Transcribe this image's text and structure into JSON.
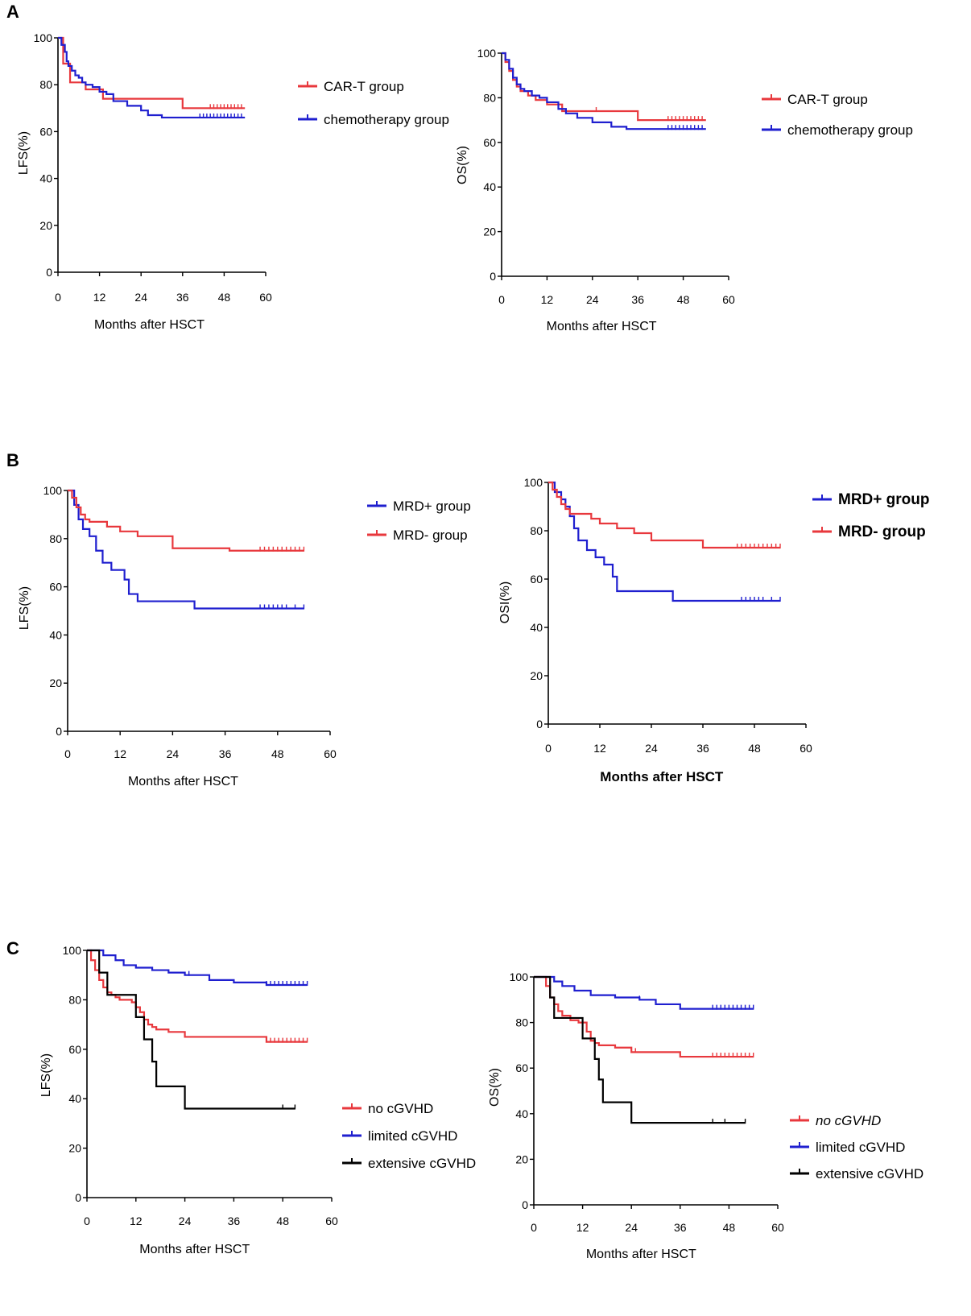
{
  "chart_data": [
    {
      "id": "A1",
      "panel": "A",
      "type": "line",
      "ylabel": "LFS(%)",
      "xlabel": "Months after HSCT",
      "xlim": [
        0,
        60
      ],
      "ylim": [
        0,
        100
      ],
      "xticks": [
        "0",
        "12",
        "24",
        "36",
        "48",
        "60"
      ],
      "yticks": [
        "0",
        "20",
        "40",
        "60",
        "80",
        "100"
      ],
      "series": [
        {
          "name": "CAR-T group",
          "color": "#e8383d",
          "x": [
            0,
            1.5,
            3.5,
            8,
            13,
            36,
            54
          ],
          "y": [
            100,
            89,
            81,
            78,
            74,
            70,
            70
          ],
          "censor_x": [
            44,
            45,
            46,
            47,
            48,
            49,
            50,
            51,
            52,
            53
          ]
        },
        {
          "name": "chemotherapy group",
          "color": "#1f1fcf",
          "x": [
            0,
            1,
            2,
            2.5,
            3,
            4,
            5,
            6,
            7,
            8,
            10,
            12,
            14,
            16,
            20,
            24,
            26,
            30,
            54
          ],
          "y": [
            100,
            97,
            94,
            90,
            88,
            86,
            84,
            83,
            81,
            80,
            79,
            77,
            76,
            73,
            71,
            69,
            67,
            66,
            66
          ],
          "censor_x": [
            41,
            42,
            43,
            44,
            45,
            46,
            47,
            48,
            49,
            50,
            51,
            52,
            53
          ]
        }
      ]
    },
    {
      "id": "A2",
      "panel": "A",
      "type": "line",
      "ylabel": "OS(%)",
      "xlabel": "Months after HSCT",
      "xlim": [
        0,
        60
      ],
      "ylim": [
        0,
        100
      ],
      "xticks": [
        "0",
        "12",
        "24",
        "36",
        "48",
        "60"
      ],
      "yticks": [
        "0",
        "20",
        "40",
        "60",
        "80",
        "100"
      ],
      "series": [
        {
          "name": "CAR-T group",
          "color": "#e8383d",
          "x": [
            0,
            1,
            2,
            3,
            4,
            5,
            7,
            9,
            12,
            16,
            36,
            54
          ],
          "y": [
            100,
            96,
            92,
            88,
            85,
            83,
            81,
            79,
            77,
            74,
            70,
            70
          ],
          "censor_x": [
            25,
            44,
            45,
            46,
            47,
            48,
            49,
            50,
            51,
            52,
            53
          ]
        },
        {
          "name": "chemotherapy group",
          "color": "#1f1fcf",
          "x": [
            0,
            1,
            2,
            3,
            4,
            5,
            6,
            8,
            10,
            12,
            15,
            17,
            20,
            24,
            29,
            33,
            54
          ],
          "y": [
            100,
            97,
            93,
            89,
            86,
            84,
            83,
            81,
            80,
            78,
            75,
            73,
            71,
            69,
            67,
            66,
            66
          ],
          "censor_x": [
            44,
            45,
            46,
            47,
            48,
            49,
            50,
            51,
            52,
            53
          ]
        }
      ]
    },
    {
      "id": "B1",
      "panel": "B",
      "type": "line",
      "ylabel": "LFS(%)",
      "xlabel": "Months after HSCT",
      "xlim": [
        0,
        60
      ],
      "ylim": [
        0,
        100
      ],
      "xticks": [
        "0",
        "12",
        "24",
        "36",
        "48",
        "60"
      ],
      "yticks": [
        "0",
        "20",
        "40",
        "60",
        "80",
        "100"
      ],
      "series": [
        {
          "name": "MRD+ group",
          "color": "#1f1fcf",
          "x": [
            0,
            1.5,
            2.5,
            3.5,
            5,
            6.5,
            8,
            10,
            13,
            14,
            16,
            29,
            54
          ],
          "y": [
            100,
            94,
            88,
            84,
            81,
            75,
            70,
            67,
            63,
            57,
            54,
            51,
            51
          ],
          "censor_x": [
            44,
            45,
            46,
            47,
            48,
            49,
            50,
            52,
            54
          ]
        },
        {
          "name": "MRD- group",
          "color": "#e8383d",
          "x": [
            0,
            1,
            2,
            3,
            4,
            5,
            9,
            12,
            16,
            24,
            37,
            54
          ],
          "y": [
            100,
            97,
            93,
            90,
            88,
            87,
            85,
            83,
            81,
            76,
            75,
            75
          ],
          "censor_x": [
            44,
            45,
            46,
            47,
            48,
            49,
            50,
            51,
            52,
            53,
            54
          ]
        }
      ]
    },
    {
      "id": "B2",
      "panel": "B",
      "type": "line",
      "ylabel": "OSI(%)",
      "xlabel": "Months after HSCT",
      "xlim": [
        0,
        60
      ],
      "ylim": [
        0,
        100
      ],
      "xticks": [
        "0",
        "12",
        "24",
        "36",
        "48",
        "60"
      ],
      "yticks": [
        "0",
        "20",
        "40",
        "60",
        "80",
        "100"
      ],
      "series": [
        {
          "name": "MRD+ group",
          "color": "#1f1fcf",
          "x": [
            0,
            1.5,
            3,
            4,
            5,
            6,
            7,
            9,
            11,
            13,
            15,
            16,
            29,
            54
          ],
          "y": [
            100,
            96,
            93,
            90,
            86,
            81,
            76,
            72,
            69,
            66,
            61,
            55,
            51,
            51
          ],
          "censor_x": [
            45,
            46,
            47,
            48,
            49,
            50,
            52,
            54
          ]
        },
        {
          "name": "MRD- group",
          "color": "#e8383d",
          "x": [
            0,
            1,
            2,
            3,
            4,
            5,
            10,
            12,
            16,
            20,
            24,
            36,
            54
          ],
          "y": [
            100,
            97,
            94,
            91,
            89,
            87,
            85,
            83,
            81,
            79,
            76,
            73,
            73
          ],
          "censor_x": [
            24,
            44,
            45,
            46,
            47,
            48,
            49,
            50,
            51,
            52,
            53,
            54
          ]
        }
      ]
    },
    {
      "id": "C1",
      "panel": "C",
      "type": "line",
      "ylabel": "LFS(%)",
      "xlabel": "Months after HSCT",
      "xlim": [
        0,
        60
      ],
      "ylim": [
        0,
        100
      ],
      "xticks": [
        "0",
        "12",
        "24",
        "36",
        "48",
        "60"
      ],
      "yticks": [
        "0",
        "20",
        "40",
        "60",
        "80",
        "100"
      ],
      "series": [
        {
          "name": "no cGVHD",
          "color": "#e8383d",
          "x": [
            0,
            1,
            2,
            3,
            4,
            5,
            6,
            7,
            8,
            10,
            11,
            12,
            13,
            14,
            15,
            16,
            17,
            20,
            24,
            30,
            44,
            54
          ],
          "y": [
            100,
            96,
            92,
            88,
            85,
            83,
            82,
            81,
            80,
            80,
            79,
            77,
            75,
            72,
            70,
            69,
            68,
            67,
            65,
            65,
            63,
            63
          ],
          "censor_x": [
            45,
            46,
            47,
            48,
            49,
            50,
            51,
            52,
            53,
            54
          ]
        },
        {
          "name": "limited cGVHD",
          "color": "#1f1fcf",
          "x": [
            0,
            4,
            7,
            9,
            12,
            16,
            20,
            24,
            30,
            36,
            44,
            54
          ],
          "y": [
            100,
            98,
            96,
            94,
            93,
            92,
            91,
            90,
            88,
            87,
            86,
            86
          ],
          "censor_x": [
            25,
            44,
            45,
            46,
            47,
            48,
            49,
            50,
            51,
            52,
            53,
            54
          ]
        },
        {
          "name": "extensive cGVHD",
          "color": "#000000",
          "x": [
            0,
            3,
            5,
            9,
            12,
            14,
            16,
            17,
            24,
            51
          ],
          "y": [
            100,
            91,
            82,
            82,
            73,
            64,
            55,
            45,
            36,
            36
          ],
          "censor_x": [
            48,
            51
          ]
        }
      ]
    },
    {
      "id": "C2",
      "panel": "C",
      "type": "line",
      "ylabel": "OS(%)",
      "xlabel": "Months after HSCT",
      "xlim": [
        0,
        60
      ],
      "ylim": [
        0,
        100
      ],
      "xticks": [
        "0",
        "12",
        "24",
        "36",
        "48",
        "60"
      ],
      "yticks": [
        "0",
        "20",
        "40",
        "60",
        "80",
        "100"
      ],
      "series": [
        {
          "name": "no cGVHD",
          "color": "#e8383d",
          "x": [
            0,
            3,
            4,
            5,
            6,
            7,
            9,
            11,
            13,
            14,
            15,
            16,
            20,
            24,
            36,
            54
          ],
          "y": [
            100,
            96,
            91,
            88,
            85,
            83,
            81,
            80,
            76,
            72,
            71,
            70,
            69,
            67,
            65,
            65
          ],
          "censor_x": [
            25,
            44,
            45,
            46,
            47,
            48,
            49,
            50,
            51,
            52,
            53,
            54
          ]
        },
        {
          "name": "limited cGVHD",
          "color": "#1f1fcf",
          "x": [
            0,
            5,
            7,
            10,
            14,
            20,
            26,
            30,
            36,
            54
          ],
          "y": [
            100,
            98,
            96,
            94,
            92,
            91,
            90,
            88,
            86,
            86
          ],
          "censor_x": [
            26,
            44,
            45,
            46,
            47,
            48,
            49,
            50,
            51,
            52,
            53,
            54
          ]
        },
        {
          "name": "extensive cGVHD",
          "color": "#000000",
          "x": [
            0,
            4,
            5,
            9,
            12,
            15,
            16,
            17,
            24,
            52
          ],
          "y": [
            100,
            91,
            82,
            82,
            73,
            64,
            55,
            45,
            36,
            36
          ],
          "censor_x": [
            44,
            47,
            52
          ]
        }
      ]
    }
  ],
  "panel_labels": [
    "A",
    "B",
    "C"
  ]
}
